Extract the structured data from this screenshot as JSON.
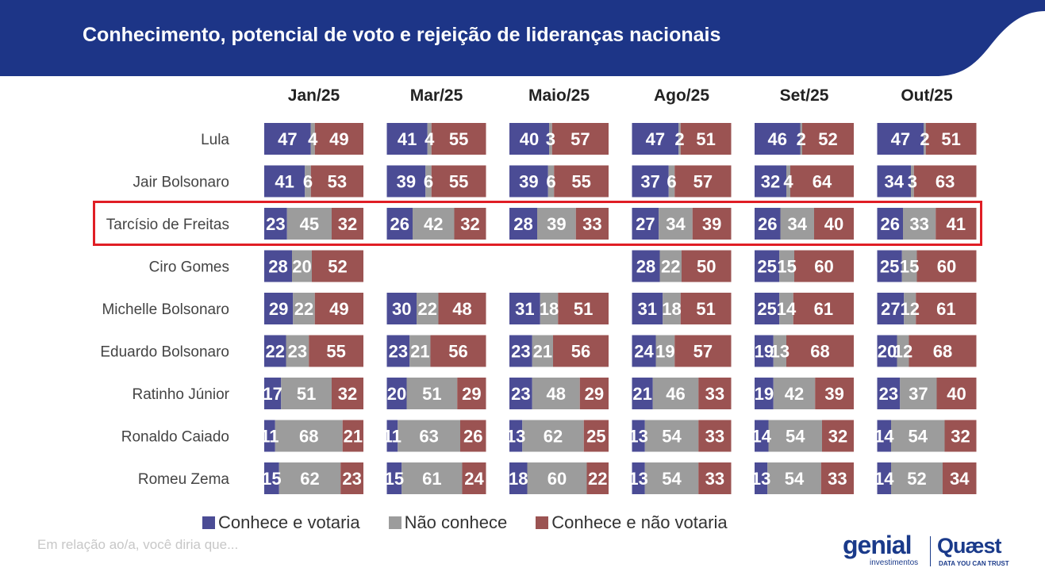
{
  "title": "Conhecimento, potencial de voto e rejeição de lideranças nacionais",
  "note": "Em relação ao/a, você diria que...",
  "logos": {
    "genial": "genial",
    "genial_sub": "investimentos",
    "quaest": "Quæst",
    "quaest_sub": "DATA YOU CAN TRUST"
  },
  "highlighted_row": "Tarcísio de Freitas",
  "chart_data": {
    "type": "bar",
    "stacked": true,
    "orientation": "horizontal",
    "title": "Conhecimento, potencial de voto e rejeição de lideranças nacionais",
    "panels": [
      "Jan/25",
      "Mar/25",
      "Maio/25",
      "Ago/25",
      "Set/25",
      "Out/25"
    ],
    "categories": [
      "Lula",
      "Jair Bolsonaro",
      "Tarcísio de Freitas",
      "Ciro Gomes",
      "Michelle Bolsonaro",
      "Eduardo Bolsonaro",
      "Ratinho Júnior",
      "Ronaldo Caiado",
      "Romeu Zema"
    ],
    "series": [
      {
        "name": "Conhece e votaria",
        "color": "#4b4c95"
      },
      {
        "name": "Não conhece",
        "color": "#9c9c9c"
      },
      {
        "name": "Conhece e não votaria",
        "color": "#9b5352"
      }
    ],
    "values": [
      [
        [
          47,
          4,
          49
        ],
        [
          41,
          4,
          55
        ],
        [
          40,
          3,
          57
        ],
        [
          47,
          2,
          51
        ],
        [
          46,
          2,
          52
        ],
        [
          47,
          2,
          51
        ]
      ],
      [
        [
          41,
          6,
          53
        ],
        [
          39,
          6,
          55
        ],
        [
          39,
          6,
          55
        ],
        [
          37,
          6,
          57
        ],
        [
          32,
          4,
          64
        ],
        [
          34,
          3,
          63
        ]
      ],
      [
        [
          23,
          45,
          32
        ],
        [
          26,
          42,
          32
        ],
        [
          28,
          39,
          33
        ],
        [
          27,
          34,
          39
        ],
        [
          26,
          34,
          40
        ],
        [
          26,
          33,
          41
        ]
      ],
      [
        [
          28,
          20,
          52
        ],
        null,
        null,
        [
          28,
          22,
          50
        ],
        [
          25,
          15,
          60
        ],
        [
          25,
          15,
          60
        ]
      ],
      [
        [
          29,
          22,
          49
        ],
        [
          30,
          22,
          48
        ],
        [
          31,
          18,
          51
        ],
        [
          31,
          18,
          51
        ],
        [
          25,
          14,
          61
        ],
        [
          27,
          12,
          61
        ]
      ],
      [
        [
          22,
          23,
          55
        ],
        [
          23,
          21,
          56
        ],
        [
          23,
          21,
          56
        ],
        [
          24,
          19,
          57
        ],
        [
          19,
          13,
          68
        ],
        [
          20,
          12,
          68
        ]
      ],
      [
        [
          17,
          51,
          32
        ],
        [
          20,
          51,
          29
        ],
        [
          23,
          48,
          29
        ],
        [
          21,
          46,
          33
        ],
        [
          19,
          42,
          39
        ],
        [
          23,
          37,
          40
        ]
      ],
      [
        [
          11,
          68,
          21
        ],
        [
          11,
          63,
          26
        ],
        [
          13,
          62,
          25
        ],
        [
          13,
          54,
          33
        ],
        [
          14,
          54,
          32
        ],
        [
          14,
          54,
          32
        ]
      ],
      [
        [
          15,
          62,
          23
        ],
        [
          15,
          61,
          24
        ],
        [
          18,
          60,
          22
        ],
        [
          13,
          54,
          33
        ],
        [
          13,
          54,
          33
        ],
        [
          14,
          52,
          34
        ]
      ]
    ],
    "xlim": [
      0,
      100
    ],
    "legend_position": "bottom"
  }
}
